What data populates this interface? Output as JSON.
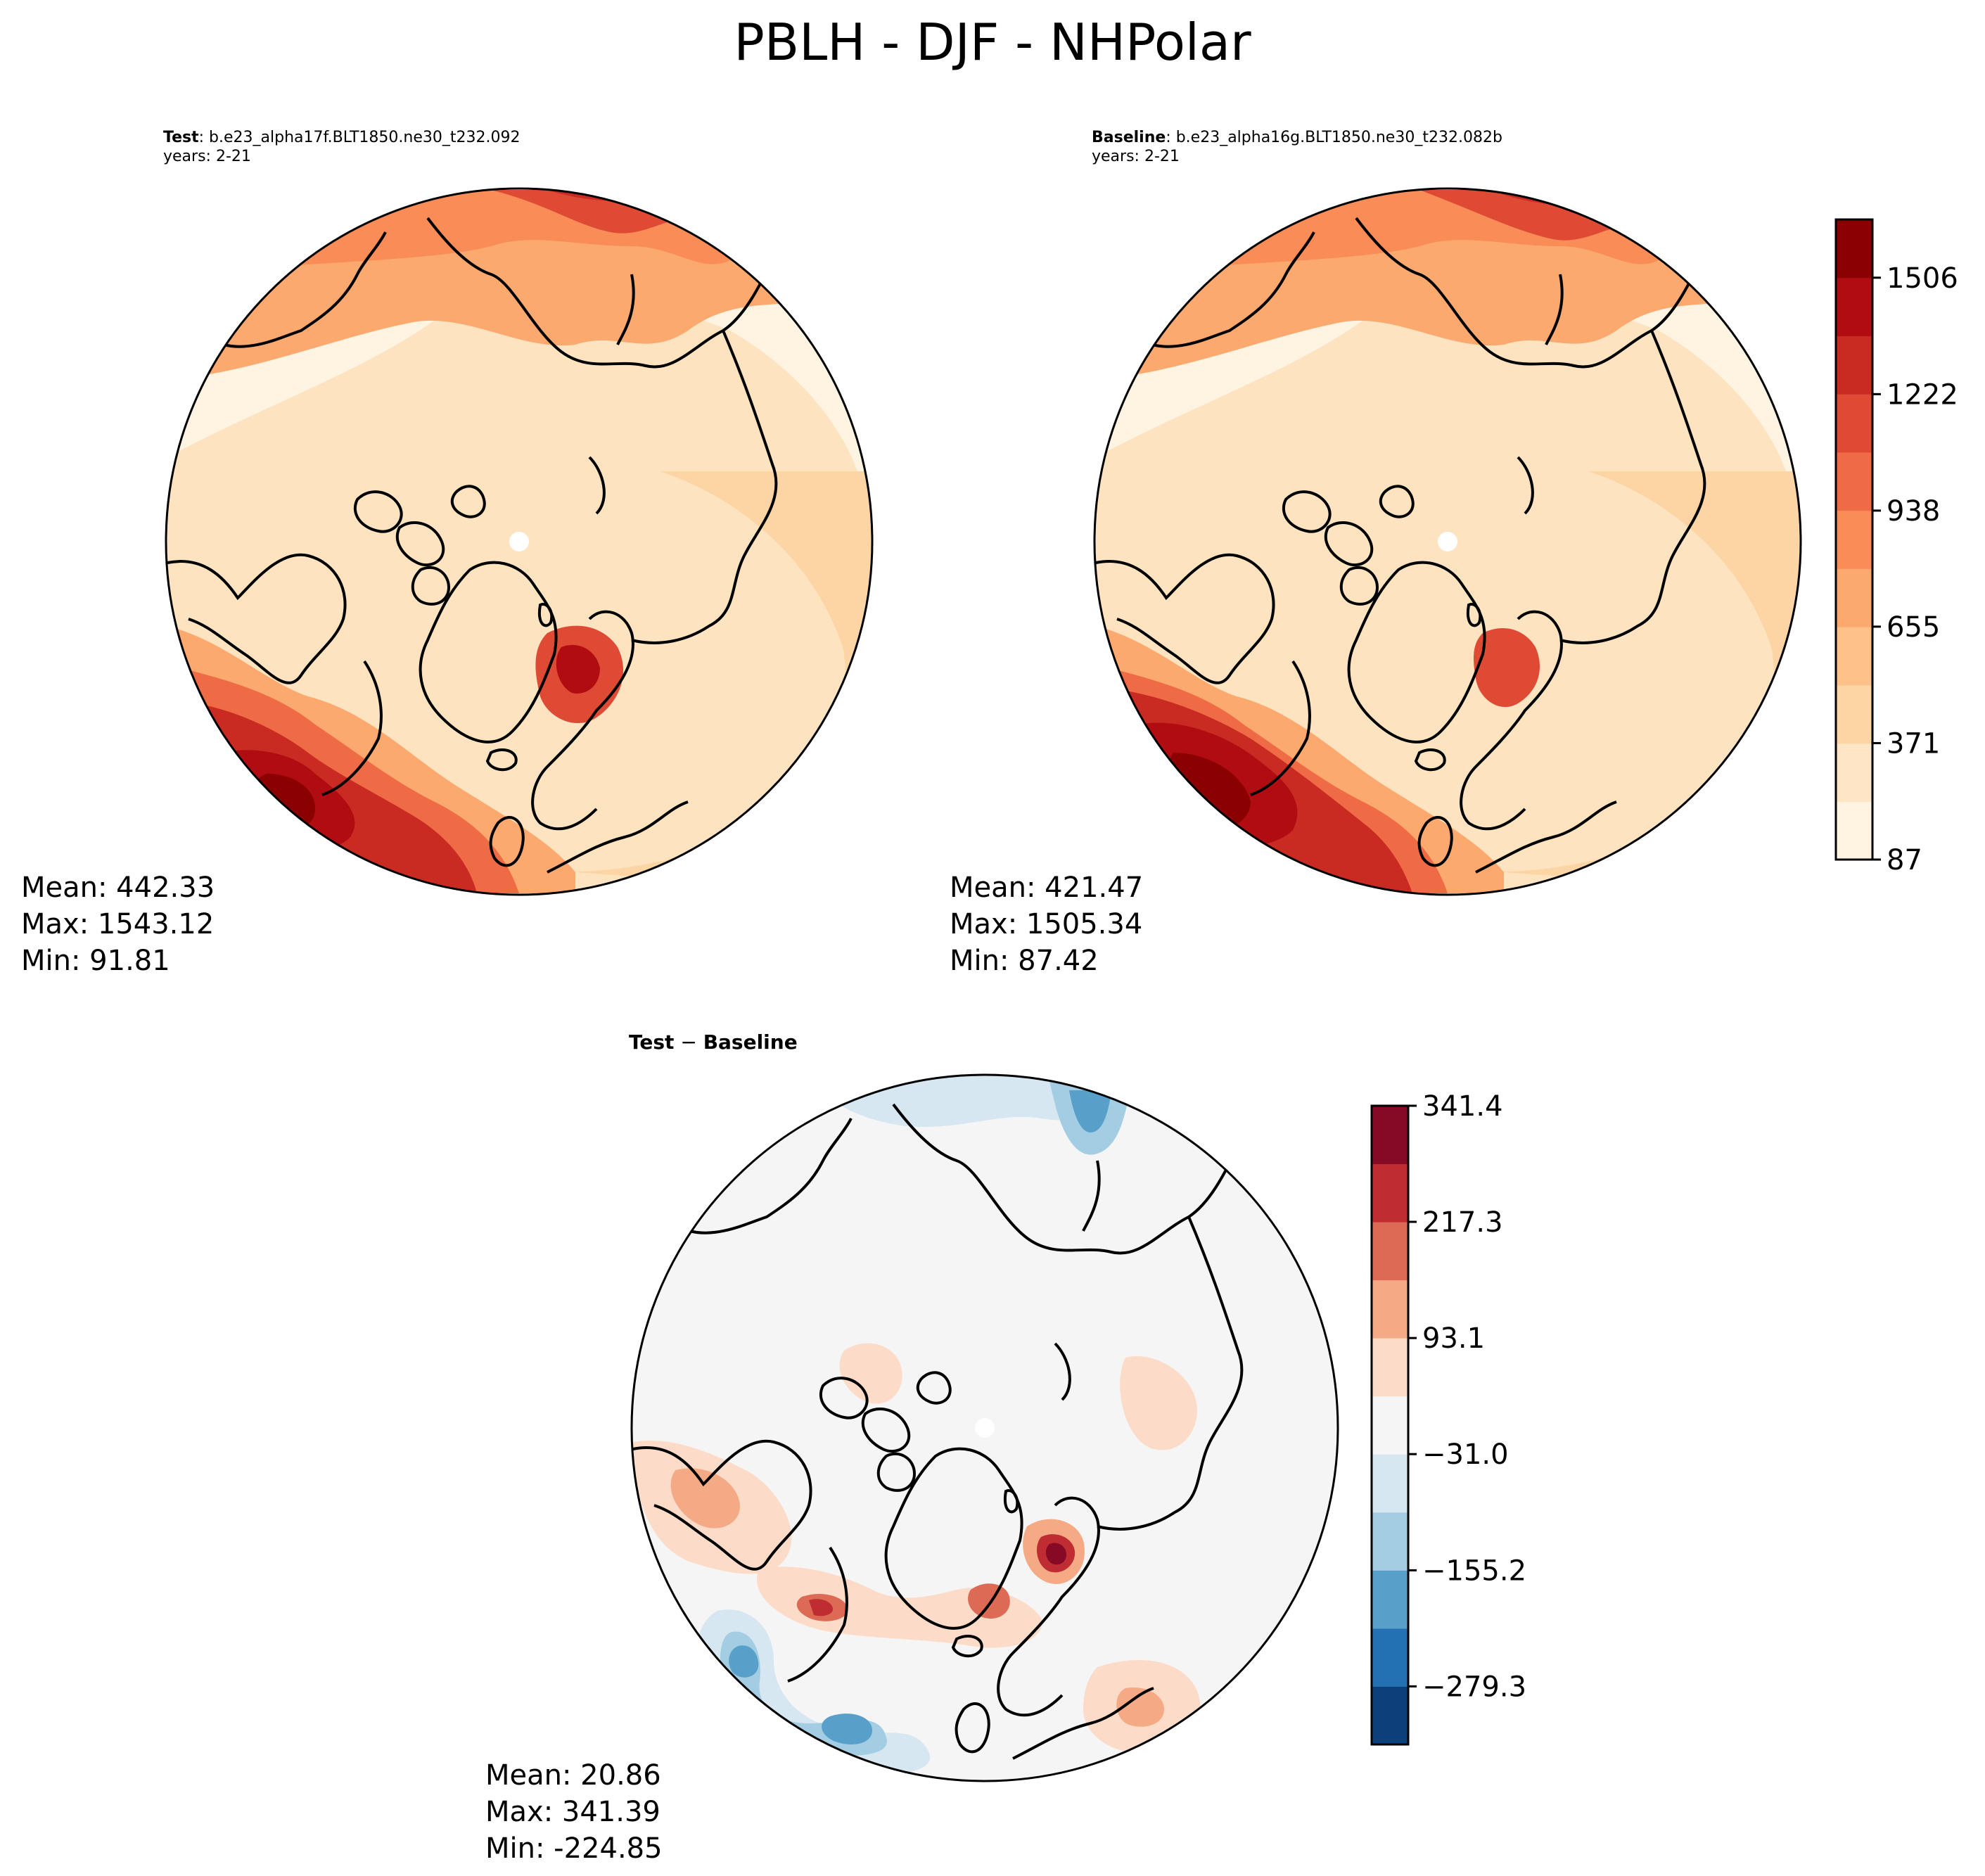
{
  "figure": {
    "title": "PBLH - DJF - NHPolar"
  },
  "panels": {
    "test": {
      "label": "Test",
      "case": ": b.e23_alpha17f.BLT1850.ne30_t232.092",
      "years": "years: 2-21",
      "stats": {
        "mean": "Mean: 442.33",
        "max": "Max: 1543.12",
        "min": "Min: 91.81"
      }
    },
    "baseline": {
      "label": "Baseline",
      "case": ": b.e23_alpha16g.BLT1850.ne30_t232.082b",
      "years": "years: 2-21",
      "stats": {
        "mean": "Mean: 421.47",
        "max": "Max: 1505.34",
        "min": "Min: 87.42"
      }
    },
    "diff": {
      "title_a": "Test",
      "title_sep": " − ",
      "title_b": "Baseline",
      "stats": {
        "mean": "Mean: 20.86",
        "max": "Max: 341.39",
        "min": "Min: -224.85"
      }
    }
  },
  "chart_data": [
    {
      "type": "heatmap",
      "projection": "north polar stereographic",
      "panel": "test",
      "colormap": "OrRd-like (light cream to dark red)",
      "stats": {
        "mean": 442.33,
        "max": 1543.12,
        "min": 91.81
      }
    },
    {
      "type": "heatmap",
      "projection": "north polar stereographic",
      "panel": "baseline",
      "colormap": "OrRd-like (light cream to dark red)",
      "stats": {
        "mean": 421.47,
        "max": 1505.34,
        "min": 87.42
      },
      "colorbar": {
        "range": [
          87,
          1648
        ],
        "ticks": [
          87,
          371,
          655,
          938,
          1222,
          1506
        ],
        "tick_labels": [
          "87",
          "371",
          "655",
          "938",
          "1222",
          "1506"
        ],
        "levels": 11,
        "colors": [
          "#fff3e2",
          "#fee5c5",
          "#fdd5a5",
          "#fdc189",
          "#fca96f",
          "#f98c57",
          "#ef6b46",
          "#df4a35",
          "#c92b22",
          "#b00c12",
          "#8b0000"
        ]
      }
    },
    {
      "type": "heatmap",
      "projection": "north polar stereographic",
      "panel": "diff",
      "colormap": "RdBu_r (diverging)",
      "stats": {
        "mean": 20.86,
        "max": 341.39,
        "min": -224.85
      },
      "colorbar": {
        "range": [
          -341.4,
          341.4
        ],
        "ticks": [
          -279.3,
          -155.2,
          -31.0,
          93.1,
          217.3,
          341.4
        ],
        "tick_labels": [
          "−279.3",
          "−155.2",
          "−31.0",
          "93.1",
          "217.3",
          "341.4"
        ],
        "levels": 11,
        "colors": [
          "#0d3f7a",
          "#2370b3",
          "#58a0ca",
          "#a2cde2",
          "#d7e7f1",
          "#f5f5f5",
          "#fcdcc9",
          "#f5aa86",
          "#dc6a55",
          "#bf2d33",
          "#860a25"
        ]
      }
    }
  ]
}
